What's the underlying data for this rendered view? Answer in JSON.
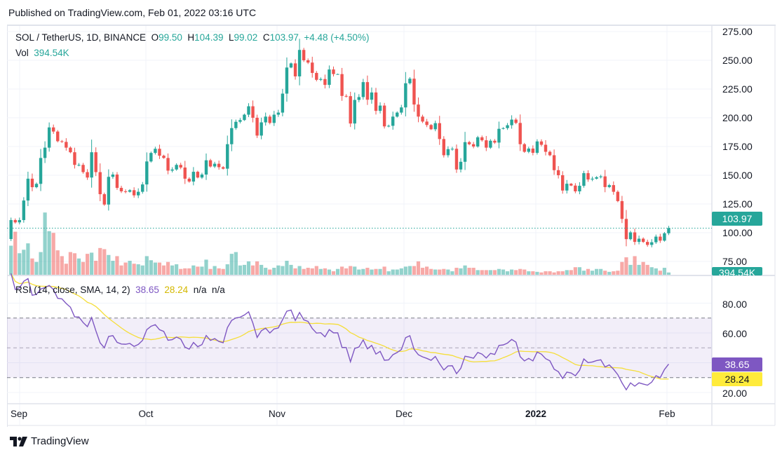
{
  "published": "Published on TradingView.com, Feb 01, 2022 03:16 UTC",
  "legend": {
    "symbol": "SOL / TetherUS, 1D, BINANCE",
    "o_label": "O",
    "o": "99.50",
    "h_label": "H",
    "h": "104.39",
    "l_label": "L",
    "l": "99.02",
    "c_label": "C",
    "c": "103.97",
    "change": "+4.48 (+4.50%)",
    "vol_label": "Vol",
    "vol": "394.54K"
  },
  "rsi_legend": {
    "title": "RSI (14, close, SMA, 14, 2)",
    "rsi": "38.65",
    "sma": "28.24",
    "na1": "n/a",
    "na2": "n/a"
  },
  "price_axis": [
    "275.00",
    "250.00",
    "225.00",
    "200.00",
    "175.00",
    "150.00",
    "125.00",
    "100.00",
    "75.00"
  ],
  "rsi_axis": [
    "80.00",
    "60.00",
    "20.00"
  ],
  "time_axis": [
    {
      "label": "Sep"
    },
    {
      "label": "Oct"
    },
    {
      "label": "Nov"
    },
    {
      "label": "Dec"
    },
    {
      "label": "2022",
      "bold": true
    },
    {
      "label": "Feb"
    }
  ],
  "tags": {
    "price": "103.97",
    "volume": "394.54K",
    "rsi": "38.65",
    "sma": "28.24"
  },
  "logo": "TradingView",
  "colors": {
    "up": "#26a69a",
    "down": "#ef5350",
    "rsi": "#7e57c2",
    "sma": "#f5de3a"
  },
  "chart_data": {
    "type": "candlestick",
    "title": "SOL / TetherUS, 1D, BINANCE",
    "x_range": [
      "2021-08-30",
      "2022-02-01"
    ],
    "ylim": [
      65,
      280
    ],
    "first_open": 94.5,
    "close": [
      111,
      109,
      111,
      128,
      147,
      139.6,
      142.5,
      165,
      174,
      191.6,
      188,
      179.6,
      179,
      174,
      170,
      159,
      159,
      152.7,
      148,
      170,
      152.7,
      133.5,
      124.5,
      148.6,
      150.6,
      139,
      136,
      135.6,
      137,
      132.5,
      135.6,
      142,
      162,
      169.4,
      173,
      167,
      165,
      154,
      155,
      159,
      156.7,
      147,
      144.5,
      153,
      148,
      150.6,
      163,
      157.6,
      160,
      157,
      155.7,
      177,
      191,
      196.5,
      198,
      202.7,
      210,
      200,
      184.5,
      196,
      201,
      195.5,
      202.7,
      204.5,
      221,
      243.7,
      247.3,
      236,
      259,
      250,
      248,
      239,
      233,
      233.7,
      228.6,
      242,
      238,
      238,
      219,
      218.8,
      195,
      215.5,
      218,
      231,
      215.7,
      222,
      206,
      210.6,
      192.5,
      193,
      201,
      204.5,
      209,
      230,
      234,
      211.5,
      201,
      196.7,
      193.7,
      190,
      195.3,
      181.5,
      167.4,
      172.7,
      173,
      155,
      161.7,
      178.8,
      177,
      175,
      183,
      180.4,
      174,
      180,
      178.4,
      190.4,
      191,
      193.5,
      198.4,
      195.5,
      177,
      170.4,
      173.2,
      169.5,
      179.4,
      176.5,
      170.4,
      167.4,
      154.4,
      150,
      136.7,
      142.6,
      141,
      136,
      140.8,
      151.8,
      146.3,
      147,
      148.3,
      149,
      139.7,
      141.4,
      135.6,
      127.5,
      112,
      94.4,
      100.3,
      92,
      94.8,
      92,
      89.4,
      91.7,
      96.6,
      93.1,
      99.5,
      103.97
    ],
    "volume_millions": [
      5.0,
      7.4,
      3.7,
      4.3,
      5.4,
      2.8,
      2.2,
      3.9,
      10.7,
      7.5,
      7.2,
      4.2,
      3.2,
      1.9,
      3.9,
      3.7,
      2.8,
      2.2,
      3.6,
      3.8,
      2.4,
      4.6,
      4.4,
      3.4,
      2.4,
      3.2,
      1.6,
      2.1,
      2.4,
      1.9,
      1.8,
      1.6,
      3.2,
      2.5,
      2.1,
      2.1,
      1.6,
      2.2,
      1.6,
      1.8,
      1.0,
      1.1,
      1.1,
      1.6,
      1.4,
      1.4,
      2.6,
      1.0,
      1.5,
      1.1,
      1.0,
      1.8,
      3.6,
      3.9,
      1.6,
      1.7,
      2.3,
      1.6,
      2.3,
      1.7,
      1.2,
      0.9,
      1.2,
      1.6,
      1.5,
      2.4,
      1.7,
      1.1,
      1.5,
      1.0,
      1.2,
      1.1,
      1.5,
      1.0,
      1.1,
      0.9,
      0.6,
      1.0,
      1.4,
      1.1,
      1.5,
      1.4,
      0.9,
      1.0,
      1.2,
      0.9,
      1.0,
      1.0,
      1.4,
      0.6,
      0.9,
      0.9,
      1.1,
      1.4,
      1.5,
      1.5,
      2.3,
      1.2,
      1.4,
      1.0,
      0.9,
      0.9,
      1.0,
      0.9,
      0.6,
      1.2,
      1.1,
      1.6,
      1.2,
      1.2,
      0.8,
      0.8,
      0.8,
      0.8,
      0.8,
      1.0,
      0.9,
      0.6,
      0.9,
      0.8,
      1.0,
      0.9,
      0.6,
      0.6,
      0.5,
      0.4,
      0.6,
      0.6,
      0.4,
      0.6,
      0.6,
      0.8,
      0.8,
      1.3,
      1.3,
      0.7,
      1.0,
      0.7,
      1.0,
      1.0,
      0.7,
      0.5,
      0.6,
      0.7,
      2.2,
      3.0,
      1.7,
      3.2,
      1.7,
      2.2,
      1.7,
      1.3,
      1.1,
      0.7,
      1.2,
      0.39
    ],
    "rsi": {
      "length": 14,
      "sma_length": 14,
      "upper_band": 70,
      "middle": 50,
      "lower_band": 30,
      "ylim": [
        10,
        95
      ],
      "last_rsi": 38.65,
      "last_sma": 28.24
    }
  }
}
